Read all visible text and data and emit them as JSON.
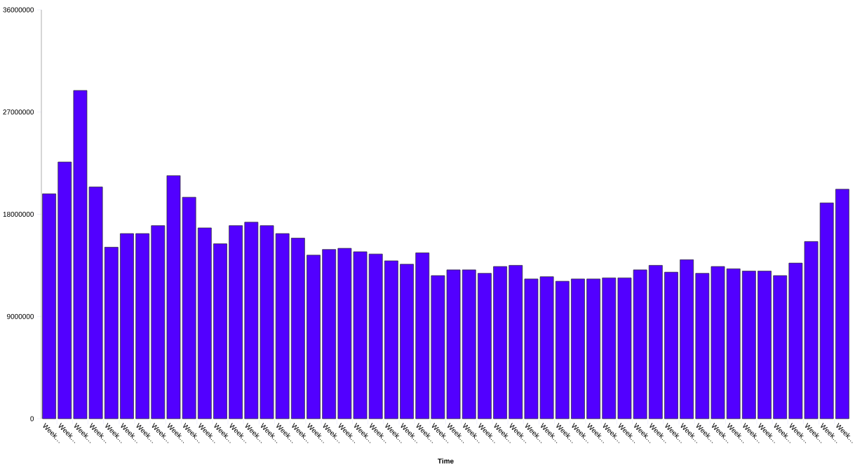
{
  "chart_data": {
    "type": "bar",
    "xlabel": "Time",
    "categories": [
      "Week…",
      "Week…",
      "Week…",
      "Week…",
      "Week…",
      "Week…",
      "Week…",
      "Week…",
      "Week…",
      "Week…",
      "Week…",
      "Week…",
      "Week…",
      "Week…",
      "Week…",
      "Week…",
      "Week…",
      "Week…",
      "Week…",
      "Week…",
      "Week…",
      "Week…",
      "Week…",
      "Week…",
      "Week…",
      "Week…",
      "Week…",
      "Week…",
      "Week…",
      "Week…",
      "Week…",
      "Week…",
      "Week…",
      "Week…",
      "Week…",
      "Week…",
      "Week…",
      "Week…",
      "Week…",
      "Week…",
      "Week…",
      "Week…",
      "Week…",
      "Week…",
      "Week…",
      "Week…",
      "Week…",
      "Week…",
      "Week…",
      "Week…",
      "Week…",
      "Week…"
    ],
    "values": [
      19800000,
      22600000,
      28900000,
      20400000,
      15100000,
      16300000,
      16300000,
      17000000,
      21400000,
      19500000,
      16800000,
      15400000,
      17000000,
      17300000,
      17000000,
      16300000,
      15900000,
      14400000,
      14900000,
      15000000,
      14700000,
      14500000,
      13900000,
      13600000,
      14600000,
      12600000,
      13100000,
      13100000,
      12800000,
      13400000,
      13500000,
      12300000,
      12500000,
      12100000,
      12300000,
      12300000,
      12400000,
      12400000,
      13100000,
      13500000,
      12900000,
      14000000,
      12800000,
      13400000,
      13200000,
      13000000,
      13000000,
      12600000,
      13700000,
      15600000,
      19000000,
      20200000
    ],
    "color": "#5200ff",
    "ylim": [
      0,
      36000000
    ],
    "yticks": [
      0,
      9000000,
      18000000,
      27000000,
      36000000
    ]
  }
}
